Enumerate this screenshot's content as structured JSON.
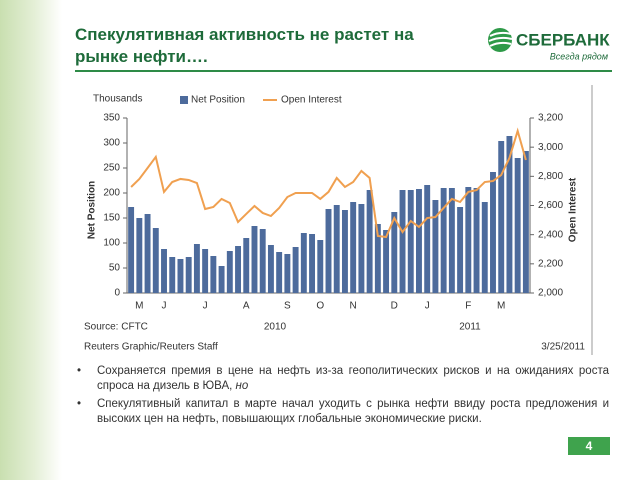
{
  "header": {
    "title_lines": [
      "Спекулятивная активность не растет на",
      "рынке нефти…."
    ],
    "logo": "СБЕРБАНК",
    "slogan": "Всегда рядом"
  },
  "chart_data": {
    "type": "bar_line",
    "units_label": "Thousands",
    "ylabel": "Net Position",
    "y2label": "Open Interest",
    "categories": [
      null,
      "M",
      null,
      null,
      "J",
      null,
      null,
      null,
      null,
      "J",
      null,
      null,
      null,
      null,
      "A",
      null,
      null,
      null,
      null,
      "S",
      null,
      null,
      null,
      "O",
      null,
      null,
      null,
      "N",
      null,
      null,
      null,
      null,
      "D",
      null,
      null,
      null,
      "J",
      null,
      null,
      null,
      null,
      "F",
      null,
      null,
      null,
      "M",
      null,
      null,
      null
    ],
    "year_labels": [
      "2010",
      "2011"
    ],
    "series": [
      {
        "name": "Net Position",
        "color": "#4d6b9c",
        "kind": "bar",
        "values": [
          172,
          150,
          158,
          130,
          88,
          72,
          68,
          72,
          98,
          88,
          74,
          54,
          84,
          94,
          110,
          134,
          128,
          96,
          82,
          78,
          92,
          120,
          118,
          106,
          168,
          176,
          166,
          182,
          178,
          206,
          138,
          126,
          162,
          206,
          206,
          208,
          216,
          186,
          210,
          210,
          172,
          212,
          210,
          182,
          242,
          304,
          314,
          270,
          284
        ]
      },
      {
        "name": "Open Interest",
        "color": "#f0a050",
        "kind": "line",
        "axis": "y2",
        "values": [
          2727,
          2782,
          2857,
          2933,
          2693,
          2761,
          2782,
          2775,
          2754,
          2576,
          2590,
          2645,
          2617,
          2487,
          2542,
          2597,
          2549,
          2528,
          2583,
          2658,
          2686,
          2686,
          2686,
          2645,
          2693,
          2789,
          2727,
          2761,
          2837,
          2789,
          2391,
          2384,
          2514,
          2418,
          2494,
          2453,
          2514,
          2521,
          2583,
          2645,
          2624,
          2693,
          2706,
          2761,
          2768,
          2809,
          2926,
          3111,
          2912
        ]
      }
    ],
    "ylim": [
      0,
      350
    ],
    "yticks": [
      0,
      50,
      100,
      150,
      200,
      250,
      300,
      350
    ],
    "y2lim": [
      2000,
      3200
    ],
    "y2ticks": [
      {
        "value": 2000,
        "label": "2,000"
      },
      {
        "value": 2200,
        "label": "2,200"
      },
      {
        "value": 2400,
        "label": "2,400"
      },
      {
        "value": 2600,
        "label": "2,600"
      },
      {
        "value": 2800,
        "label": "2,800"
      },
      {
        "value": 3000,
        "label": "3,000"
      },
      {
        "value": 3200,
        "label": "3,200"
      }
    ],
    "grid": false,
    "source": "Source: CFTC",
    "credit": "Reuters Graphic/Reuters Staff",
    "date": "3/25/2011"
  },
  "bullets": [
    {
      "text": "Сохраняется премия в цене на нефть из-за геополитических рисков и на ожиданиях роста спроса на дизель в ЮВА,",
      "emphasis": "но"
    },
    {
      "text": "Спекулятивный капитал в марте начал уходить с рынка нефти ввиду роста предложения и высоких цен на нефть, повышающих глобальные экономические риски."
    }
  ],
  "page_number": "4"
}
